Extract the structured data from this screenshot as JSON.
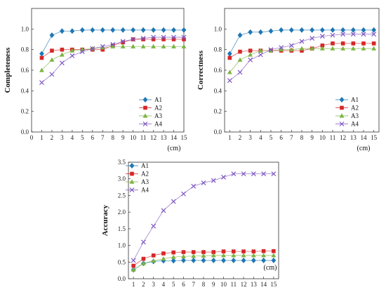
{
  "chart_data": [
    {
      "type": "line",
      "ylabel": "Completeness",
      "xunit": "(cm)",
      "x": [
        1,
        2,
        3,
        4,
        5,
        6,
        7,
        8,
        9,
        10,
        11,
        12,
        13,
        14,
        15
      ],
      "xlim": [
        0,
        15
      ],
      "xticks": [
        0,
        1,
        2,
        3,
        4,
        5,
        6,
        7,
        8,
        9,
        10,
        11,
        12,
        13,
        14,
        15
      ],
      "ylim": [
        0,
        1.2
      ],
      "yticks": [
        "0.0",
        "0.2",
        "0.4",
        "0.6",
        "0.8",
        "1.0"
      ],
      "legend_position": "right-middle",
      "series": [
        {
          "name": "A1",
          "marker": "diamond",
          "color": "#1f77b4",
          "values": [
            0.76,
            0.94,
            0.98,
            0.98,
            0.99,
            0.99,
            0.99,
            0.99,
            0.99,
            0.99,
            0.99,
            0.99,
            0.99,
            0.99,
            0.99
          ]
        },
        {
          "name": "A2",
          "marker": "square",
          "color": "#d62728",
          "values": [
            0.72,
            0.79,
            0.8,
            0.8,
            0.8,
            0.8,
            0.8,
            0.84,
            0.87,
            0.9,
            0.9,
            0.9,
            0.9,
            0.9,
            0.9
          ]
        },
        {
          "name": "A3",
          "marker": "triangle",
          "color": "#7cb342",
          "values": [
            0.6,
            0.7,
            0.75,
            0.79,
            0.8,
            0.81,
            0.82,
            0.83,
            0.83,
            0.83,
            0.83,
            0.83,
            0.83,
            0.83,
            0.83
          ]
        },
        {
          "name": "A4",
          "marker": "x",
          "color": "#7e57c2",
          "values": [
            0.48,
            0.56,
            0.67,
            0.74,
            0.78,
            0.81,
            0.83,
            0.85,
            0.88,
            0.9,
            0.91,
            0.92,
            0.92,
            0.92,
            0.92
          ]
        }
      ]
    },
    {
      "type": "line",
      "ylabel": "Correctness",
      "xunit": "(cm)",
      "x": [
        1,
        2,
        3,
        4,
        5,
        6,
        7,
        8,
        9,
        10,
        11,
        12,
        13,
        14,
        15
      ],
      "xlim": [
        0.5,
        15.5
      ],
      "xticks": [
        1,
        2,
        3,
        4,
        5,
        6,
        7,
        8,
        9,
        10,
        11,
        12,
        13,
        14,
        15
      ],
      "ylim": [
        0,
        1.2
      ],
      "yticks": [
        "0.0",
        "0.2",
        "0.4",
        "0.6",
        "0.8",
        "1.0"
      ],
      "legend_position": "right-middle",
      "series": [
        {
          "name": "A1",
          "marker": "diamond",
          "color": "#1f77b4",
          "values": [
            0.76,
            0.94,
            0.97,
            0.97,
            0.98,
            0.99,
            0.99,
            0.99,
            0.99,
            0.99,
            0.99,
            0.99,
            0.99,
            0.99,
            0.99
          ]
        },
        {
          "name": "A2",
          "marker": "square",
          "color": "#d62728",
          "values": [
            0.72,
            0.78,
            0.79,
            0.79,
            0.79,
            0.79,
            0.79,
            0.79,
            0.81,
            0.84,
            0.86,
            0.86,
            0.86,
            0.86,
            0.86
          ]
        },
        {
          "name": "A3",
          "marker": "triangle",
          "color": "#7cb342",
          "values": [
            0.58,
            0.7,
            0.75,
            0.79,
            0.79,
            0.8,
            0.8,
            0.81,
            0.81,
            0.81,
            0.81,
            0.81,
            0.81,
            0.81,
            0.81
          ]
        },
        {
          "name": "A4",
          "marker": "x",
          "color": "#7e57c2",
          "values": [
            0.5,
            0.58,
            0.7,
            0.75,
            0.8,
            0.82,
            0.84,
            0.88,
            0.91,
            0.93,
            0.94,
            0.95,
            0.95,
            0.95,
            0.95
          ]
        }
      ]
    },
    {
      "type": "line",
      "ylabel": "Accuracy",
      "xunit": "(cm)",
      "x": [
        1,
        2,
        3,
        4,
        5,
        6,
        7,
        8,
        9,
        10,
        11,
        12,
        13,
        14,
        15
      ],
      "xlim": [
        0.5,
        15.5
      ],
      "xticks": [
        1,
        2,
        3,
        4,
        5,
        6,
        7,
        8,
        9,
        10,
        11,
        12,
        13,
        14,
        15
      ],
      "ylim": [
        0,
        3.5
      ],
      "yticks": [
        "0.0",
        "0.5",
        "1.0",
        "1.5",
        "2.0",
        "2.5",
        "3.0",
        "3.5"
      ],
      "legend_position": "top-left",
      "series": [
        {
          "name": "A1",
          "marker": "diamond",
          "color": "#1f77b4",
          "values": [
            0.27,
            0.46,
            0.52,
            0.54,
            0.54,
            0.55,
            0.55,
            0.55,
            0.55,
            0.55,
            0.55,
            0.55,
            0.55,
            0.55,
            0.55
          ]
        },
        {
          "name": "A2",
          "marker": "square",
          "color": "#d62728",
          "values": [
            0.39,
            0.6,
            0.7,
            0.76,
            0.79,
            0.8,
            0.8,
            0.8,
            0.8,
            0.82,
            0.82,
            0.82,
            0.82,
            0.83,
            0.83
          ]
        },
        {
          "name": "A3",
          "marker": "triangle",
          "color": "#7cb342",
          "values": [
            0.27,
            0.46,
            0.54,
            0.6,
            0.65,
            0.67,
            0.68,
            0.69,
            0.7,
            0.7,
            0.7,
            0.7,
            0.7,
            0.7,
            0.7
          ]
        },
        {
          "name": "A4",
          "marker": "x",
          "color": "#7e57c2",
          "values": [
            0.55,
            1.1,
            1.58,
            2.05,
            2.32,
            2.55,
            2.78,
            2.88,
            2.95,
            3.05,
            3.15,
            3.15,
            3.15,
            3.15,
            3.15
          ]
        }
      ]
    }
  ]
}
